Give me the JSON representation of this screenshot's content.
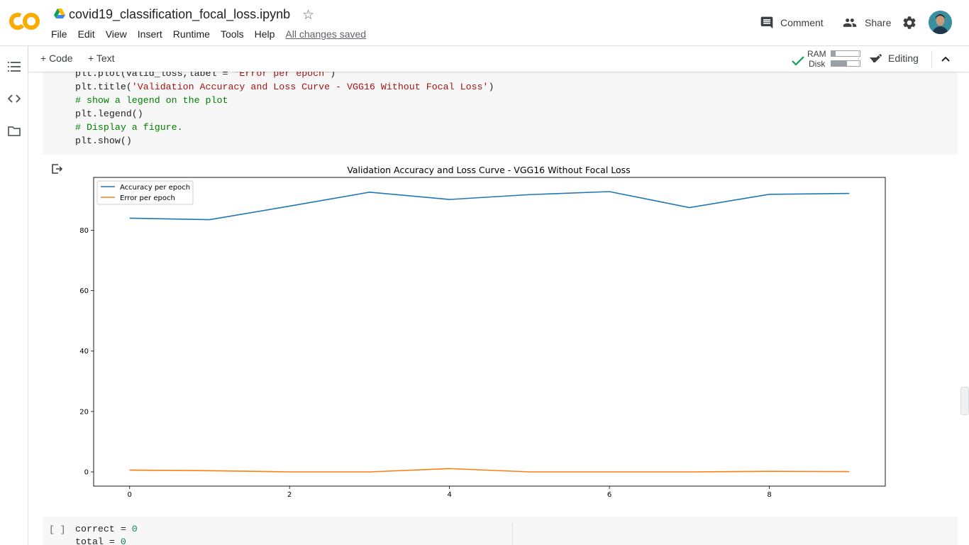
{
  "header": {
    "title": "covid19_classification_focal_loss.ipynb",
    "menu": [
      "File",
      "Edit",
      "View",
      "Insert",
      "Runtime",
      "Tools",
      "Help"
    ],
    "saved_status": "All changes saved",
    "comment_label": "Comment",
    "share_label": "Share"
  },
  "toolbar": {
    "code_label": "+ Code",
    "text_label": "+ Text",
    "ram_label": "RAM",
    "disk_label": "Disk",
    "ram_level": 0.15,
    "disk_level": 0.55,
    "editing_label": "Editing"
  },
  "code_cell": {
    "lines": [
      {
        "code": "plt.plot(valid_loss,label = ",
        "str": "\"Error per epoch\"",
        "tail": ")"
      },
      {
        "code": "plt.title(",
        "str": "'Validation Accuracy and Loss Curve - VGG16 Without Focal Loss'",
        "tail": ")"
      },
      {
        "cmt": "# show a legend on the plot"
      },
      {
        "code": "plt.legend()"
      },
      {
        "cmt": "# Display a figure."
      },
      {
        "code": "plt.show()"
      }
    ]
  },
  "next_cell": {
    "brackets": "[ ]",
    "line1_code": "correct = ",
    "line1_num": "0",
    "line2_code": "total = ",
    "line2_num": "0"
  },
  "chart_data": {
    "type": "line",
    "title": "Validation Accuracy and Loss Curve - VGG16 Without Focal Loss",
    "xlabel": "",
    "ylabel": "",
    "x": [
      0,
      1,
      2,
      3,
      4,
      5,
      6,
      7,
      8,
      9
    ],
    "xlim": [
      -0.45,
      9.45
    ],
    "ylim": [
      -4.7,
      97.5
    ],
    "xticks": [
      0,
      2,
      4,
      6,
      8
    ],
    "yticks": [
      0,
      20,
      40,
      60,
      80
    ],
    "grid": false,
    "legend_position": "top-left",
    "series": [
      {
        "name": "Accuracy per epoch",
        "color": "#1f77b4",
        "values": [
          84.0,
          83.5,
          88.0,
          92.6,
          90.2,
          91.8,
          92.8,
          87.5,
          91.9,
          92.2
        ]
      },
      {
        "name": "Error per epoch",
        "color": "#ff7f0e",
        "values": [
          0.6,
          0.4,
          0.0,
          0.0,
          1.1,
          0.0,
          0.0,
          0.0,
          0.2,
          0.1
        ]
      }
    ]
  }
}
